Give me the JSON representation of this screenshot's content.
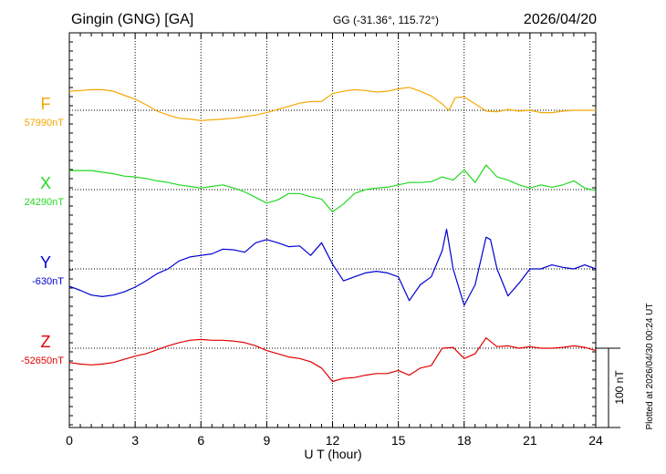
{
  "header": {
    "station": "Gingin (GNG)  [GA]",
    "coords": "GG (-31.36°, 115.72°)",
    "date": "2026/04/20"
  },
  "plotted_note": "Plotted at 2026/04/30 00:24 UT",
  "scale_label": "100 nT",
  "chart_data": {
    "type": "line",
    "xlabel": "U T (hour)",
    "xlim": [
      0,
      24
    ],
    "xticks": [
      "0",
      "3",
      "6",
      "9",
      "12",
      "15",
      "18",
      "21",
      "24"
    ],
    "grid": "dotted baselines and vertical lines every 3 h",
    "scale_nT": 100,
    "series": [
      {
        "name": "F",
        "baseline": "57990nT",
        "color": "#f5a800",
        "x": [
          0,
          0.5,
          1,
          1.5,
          2,
          2.5,
          3,
          3.5,
          4,
          4.5,
          5,
          5.5,
          6,
          6.5,
          7,
          7.5,
          8,
          8.5,
          9,
          9.5,
          10,
          10.5,
          11,
          11.5,
          12,
          12.5,
          13,
          13.5,
          14,
          14.5,
          15,
          15.5,
          16,
          16.5,
          17,
          17.3,
          17.6,
          18,
          18.5,
          19,
          19.5,
          20,
          20.5,
          21,
          21.5,
          22,
          22.5,
          23,
          23.5,
          24
        ],
        "values": [
          24,
          25,
          26,
          26,
          24,
          19,
          14,
          7,
          -1,
          -6,
          -10,
          -11,
          -13,
          -12,
          -11,
          -10,
          -8,
          -6,
          -3,
          1,
          5,
          9,
          11,
          11,
          21,
          24,
          26,
          25,
          23,
          24,
          27,
          29,
          24,
          18,
          8,
          0,
          16,
          17,
          8,
          -1,
          -2,
          1,
          -1,
          0,
          -3,
          -3,
          -1,
          0,
          0,
          0
        ]
      },
      {
        "name": "X",
        "baseline": "24290nT",
        "color": "#22d822",
        "x": [
          0,
          0.5,
          1,
          1.5,
          2,
          2.5,
          3,
          3.5,
          4,
          4.5,
          5,
          5.5,
          6,
          6.5,
          7,
          7.5,
          8,
          8.5,
          9,
          9.5,
          10,
          10.5,
          11,
          11.5,
          12,
          12.5,
          13,
          13.5,
          14,
          14.5,
          15,
          15.5,
          16,
          16.5,
          17,
          17.5,
          18,
          18.5,
          19,
          19.5,
          20,
          20.5,
          21,
          21.5,
          22,
          22.5,
          23,
          23.5,
          24
        ],
        "values": [
          24,
          24,
          24,
          22,
          20,
          17,
          16,
          14,
          11,
          9,
          6,
          4,
          2,
          4,
          6,
          2,
          -3,
          -10,
          -17,
          -13,
          -5,
          -5,
          -9,
          -12,
          -28,
          -18,
          -5,
          0,
          2,
          3,
          6,
          9,
          9,
          10,
          16,
          12,
          25,
          9,
          31,
          16,
          12,
          6,
          2,
          6,
          3,
          6,
          11,
          2,
          -1
        ]
      },
      {
        "name": "Y",
        "baseline": "-630nT",
        "color": "#0000d0",
        "x": [
          0,
          0.5,
          1,
          1.5,
          2,
          2.5,
          3,
          3.5,
          4,
          4.5,
          5,
          5.5,
          6,
          6.5,
          7,
          7.5,
          8,
          8.5,
          9,
          9.5,
          10,
          10.5,
          11,
          11.5,
          12,
          12.5,
          13,
          13.5,
          14,
          14.5,
          15,
          15.5,
          16,
          16.5,
          17,
          17.2,
          17.5,
          18,
          18.5,
          19,
          19.2,
          19.5,
          20,
          20.5,
          21,
          21.5,
          22,
          22.5,
          23,
          23.5,
          24
        ],
        "values": [
          -22,
          -27,
          -33,
          -35,
          -33,
          -29,
          -23,
          -15,
          -6,
          0,
          10,
          15,
          17,
          19,
          25,
          24,
          21,
          33,
          37,
          33,
          28,
          29,
          17,
          33,
          6,
          -15,
          -10,
          -5,
          -3,
          -5,
          -10,
          -40,
          -20,
          -10,
          23,
          50,
          0,
          -46,
          -20,
          40,
          37,
          0,
          -34,
          -18,
          0,
          0,
          5,
          2,
          0,
          5,
          0
        ]
      },
      {
        "name": "Z",
        "baseline": "-52650nT",
        "color": "#e00000",
        "x": [
          0,
          0.5,
          1,
          1.5,
          2,
          2.5,
          3,
          3.5,
          4,
          4.5,
          5,
          5.5,
          6,
          6.5,
          7,
          7.5,
          8,
          8.5,
          9,
          9.5,
          10,
          10.5,
          11,
          11.5,
          12,
          12.5,
          13,
          13.5,
          14,
          14.5,
          15,
          15.5,
          16,
          16.5,
          17,
          17.5,
          18,
          18.5,
          19,
          19.5,
          20,
          20.5,
          21,
          21.5,
          22,
          22.5,
          23,
          23.5,
          24
        ],
        "values": [
          -18,
          -20,
          -21,
          -20,
          -18,
          -14,
          -10,
          -7,
          -2,
          3,
          7,
          10,
          11,
          10,
          10,
          9,
          7,
          3,
          -3,
          -7,
          -11,
          -13,
          -17,
          -25,
          -42,
          -38,
          -37,
          -34,
          -32,
          -32,
          -28,
          -34,
          -25,
          -22,
          0,
          1,
          -13,
          -7,
          13,
          2,
          3,
          0,
          2,
          0,
          0,
          1,
          3,
          1,
          -3
        ]
      }
    ]
  }
}
